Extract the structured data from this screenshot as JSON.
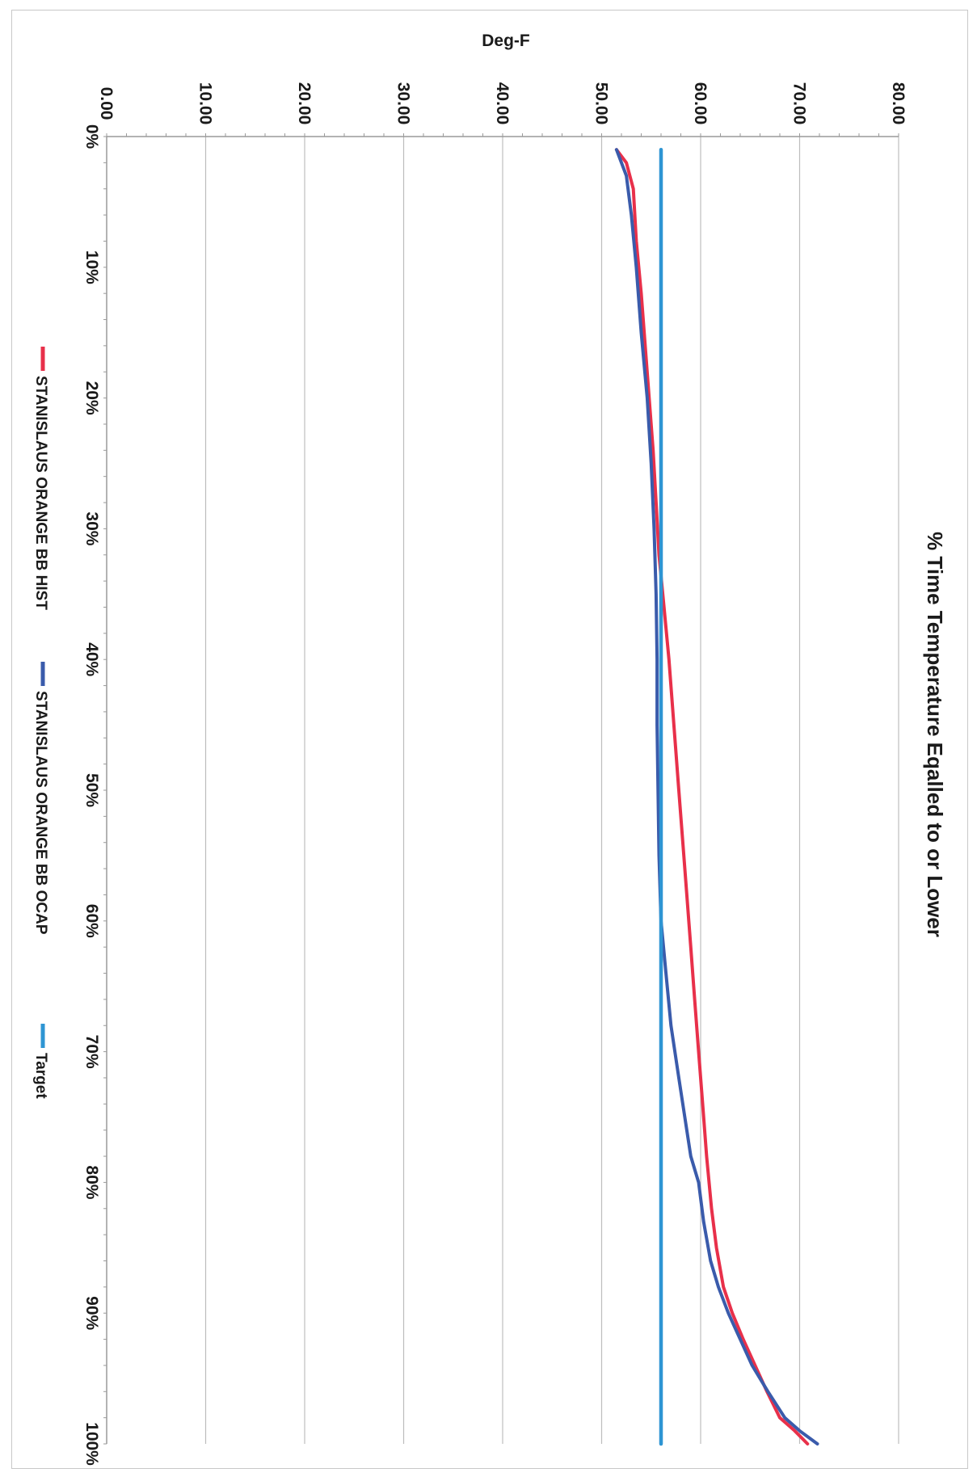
{
  "chart_data": {
    "type": "line",
    "title": "% Time Temperature Eqalled to or Lower",
    "ylabel": "Deg-F",
    "xlabel": "",
    "x_ticks": [
      "0%",
      "10%",
      "20%",
      "30%",
      "40%",
      "50%",
      "60%",
      "70%",
      "80%",
      "90%",
      "100%"
    ],
    "y_ticks": [
      "0.00",
      "10.00",
      "20.00",
      "30.00",
      "40.00",
      "50.00",
      "60.00",
      "70.00",
      "80.00"
    ],
    "xlim": [
      0,
      100
    ],
    "ylim": [
      0,
      80
    ],
    "grid": true,
    "orientation": "rotated 90 degrees clockwise",
    "legend_position": "bottom",
    "series": [
      {
        "name": "STANISLAUS ORANGE BB HIST",
        "color": "#e8304a",
        "x": [
          1,
          2,
          4,
          8,
          12,
          16,
          20,
          24,
          28,
          32,
          36,
          40,
          45,
          50,
          55,
          58,
          62,
          66,
          70,
          74,
          78,
          82,
          85,
          88,
          90,
          92,
          94,
          96,
          98,
          99,
          100
        ],
        "y": [
          51.5,
          52.5,
          53.2,
          53.5,
          54.0,
          54.4,
          54.8,
          55.2,
          55.5,
          55.8,
          56.3,
          56.8,
          57.3,
          57.8,
          58.3,
          58.6,
          59.0,
          59.4,
          59.8,
          60.2,
          60.6,
          61.1,
          61.6,
          62.3,
          63.2,
          64.3,
          65.5,
          66.7,
          68.0,
          69.5,
          70.8
        ]
      },
      {
        "name": "STANISLAUS ORANGE BB OCAP",
        "color": "#3a5bab",
        "x": [
          1,
          3,
          6,
          10,
          15,
          20,
          25,
          30,
          35,
          40,
          45,
          50,
          55,
          60,
          64,
          68,
          72,
          75,
          78,
          80,
          83,
          86,
          88,
          90,
          92,
          94,
          96,
          98,
          99,
          100
        ],
        "y": [
          51.5,
          52.5,
          53.0,
          53.5,
          54.0,
          54.6,
          55.0,
          55.3,
          55.5,
          55.6,
          55.6,
          55.7,
          55.8,
          56.0,
          56.5,
          57.0,
          57.8,
          58.4,
          59.0,
          59.8,
          60.3,
          61.0,
          61.8,
          62.8,
          64.0,
          65.2,
          66.8,
          68.5,
          70.0,
          71.8
        ]
      },
      {
        "name": "Target",
        "color": "#2e95d3",
        "x": [
          1,
          100
        ],
        "y": [
          56.0,
          56.0
        ]
      }
    ]
  }
}
